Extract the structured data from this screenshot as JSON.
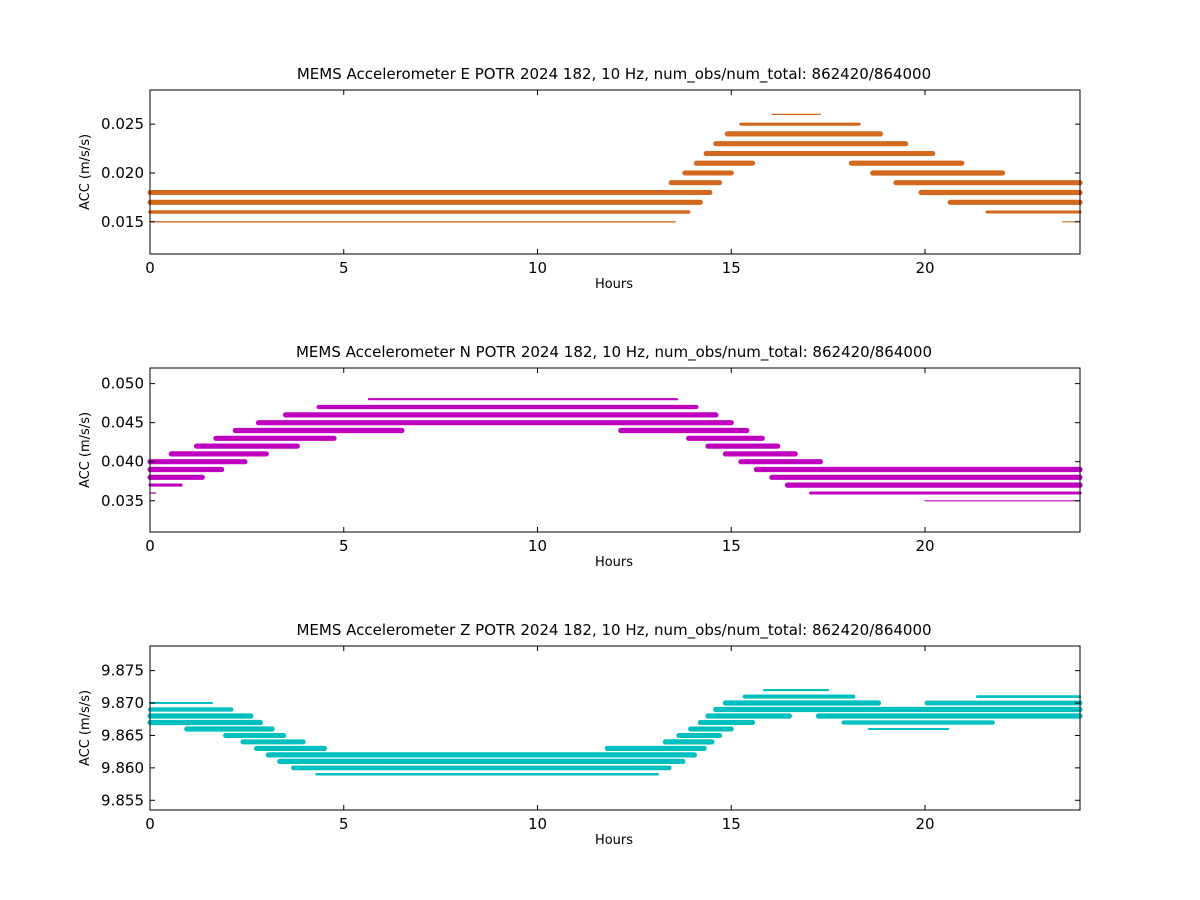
{
  "figure": {
    "background": "#ffffff"
  },
  "chart_data": [
    {
      "type": "scatter",
      "title": "MEMS Accelerometer E POTR 2024 182, 10 Hz, num_obs/num_total: 862420/864000",
      "xlabel": "Hours",
      "ylabel": "ACC (m/s/s)",
      "xlim": [
        0,
        24
      ],
      "ylim": [
        0.0117,
        0.0285
      ],
      "xticks": [
        0,
        5,
        10,
        15,
        20
      ],
      "xtick_labels": [
        "0",
        "5",
        "10",
        "15",
        "20"
      ],
      "yticks": [
        0.015,
        0.02,
        0.025
      ],
      "ytick_labels": [
        "0.015",
        "0.020",
        "0.025"
      ],
      "grid": false,
      "color": "#d2691e",
      "level_step": 0.001,
      "baseline": [
        [
          0,
          0.0168
        ],
        [
          13.4,
          0.0168
        ],
        [
          14.0,
          0.0185
        ],
        [
          14.6,
          0.021
        ],
        [
          15.2,
          0.0228
        ],
        [
          16.0,
          0.0238
        ],
        [
          17.0,
          0.024
        ],
        [
          18.0,
          0.0233
        ],
        [
          19.0,
          0.0215
        ],
        [
          20.0,
          0.02
        ],
        [
          21.0,
          0.0187
        ],
        [
          22.0,
          0.0178
        ],
        [
          24.0,
          0.017
        ]
      ],
      "spread": 2.2
    },
    {
      "type": "scatter",
      "title": "MEMS Accelerometer N POTR 2024 182, 10 Hz, num_obs/num_total: 862420/864000",
      "xlabel": "Hours",
      "ylabel": "ACC (m/s/s)",
      "xlim": [
        0,
        24
      ],
      "ylim": [
        0.031,
        0.052
      ],
      "xticks": [
        0,
        5,
        10,
        15,
        20
      ],
      "xtick_labels": [
        "0",
        "5",
        "10",
        "15",
        "20"
      ],
      "yticks": [
        0.035,
        0.04,
        0.045,
        0.05
      ],
      "ytick_labels": [
        "0.035",
        "0.040",
        "0.045",
        "0.050"
      ],
      "grid": false,
      "color": "#bf00bf",
      "level_step": 0.001,
      "baseline": [
        [
          0,
          0.038
        ],
        [
          1.0,
          0.0395
        ],
        [
          2.0,
          0.0415
        ],
        [
          3.0,
          0.0432
        ],
        [
          4.0,
          0.0445
        ],
        [
          5.0,
          0.0455
        ],
        [
          6.5,
          0.0462
        ],
        [
          10.0,
          0.0465
        ],
        [
          13.5,
          0.046
        ],
        [
          14.5,
          0.044
        ],
        [
          15.5,
          0.0415
        ],
        [
          16.5,
          0.039
        ],
        [
          17.5,
          0.0375
        ],
        [
          19.0,
          0.0375
        ],
        [
          20.0,
          0.0372
        ],
        [
          24.0,
          0.037
        ]
      ],
      "spread": 2.2
    },
    {
      "type": "scatter",
      "title": "MEMS Accelerometer Z POTR 2024 182, 10 Hz, num_obs/num_total: 862420/864000",
      "xlabel": "Hours",
      "ylabel": "ACC (m/s/s)",
      "xlim": [
        0,
        24
      ],
      "ylim": [
        9.8535,
        9.8788
      ],
      "xticks": [
        0,
        5,
        10,
        15,
        20
      ],
      "xtick_labels": [
        "0",
        "5",
        "10",
        "15",
        "20"
      ],
      "yticks": [
        9.855,
        9.86,
        9.865,
        9.87,
        9.875
      ],
      "ytick_labels": [
        "9.855",
        "9.860",
        "9.865",
        "9.870",
        "9.875"
      ],
      "grid": false,
      "color": "#00bfbf",
      "level_step": 0.001,
      "baseline": [
        [
          0,
          9.8685
        ],
        [
          1.5,
          9.868
        ],
        [
          2.5,
          9.866
        ],
        [
          3.5,
          9.8625
        ],
        [
          4.5,
          9.8608
        ],
        [
          6.0,
          9.8603
        ],
        [
          10.0,
          9.8605
        ],
        [
          13.0,
          9.861
        ],
        [
          14.0,
          9.864
        ],
        [
          14.8,
          9.8678
        ],
        [
          15.8,
          9.8698
        ],
        [
          17.0,
          9.8705
        ],
        [
          18.0,
          9.869
        ],
        [
          19.0,
          9.8675
        ],
        [
          20.0,
          9.8678
        ],
        [
          21.0,
          9.8685
        ],
        [
          22.0,
          9.8695
        ],
        [
          24.0,
          9.8698
        ]
      ],
      "spread": 2.2
    }
  ]
}
